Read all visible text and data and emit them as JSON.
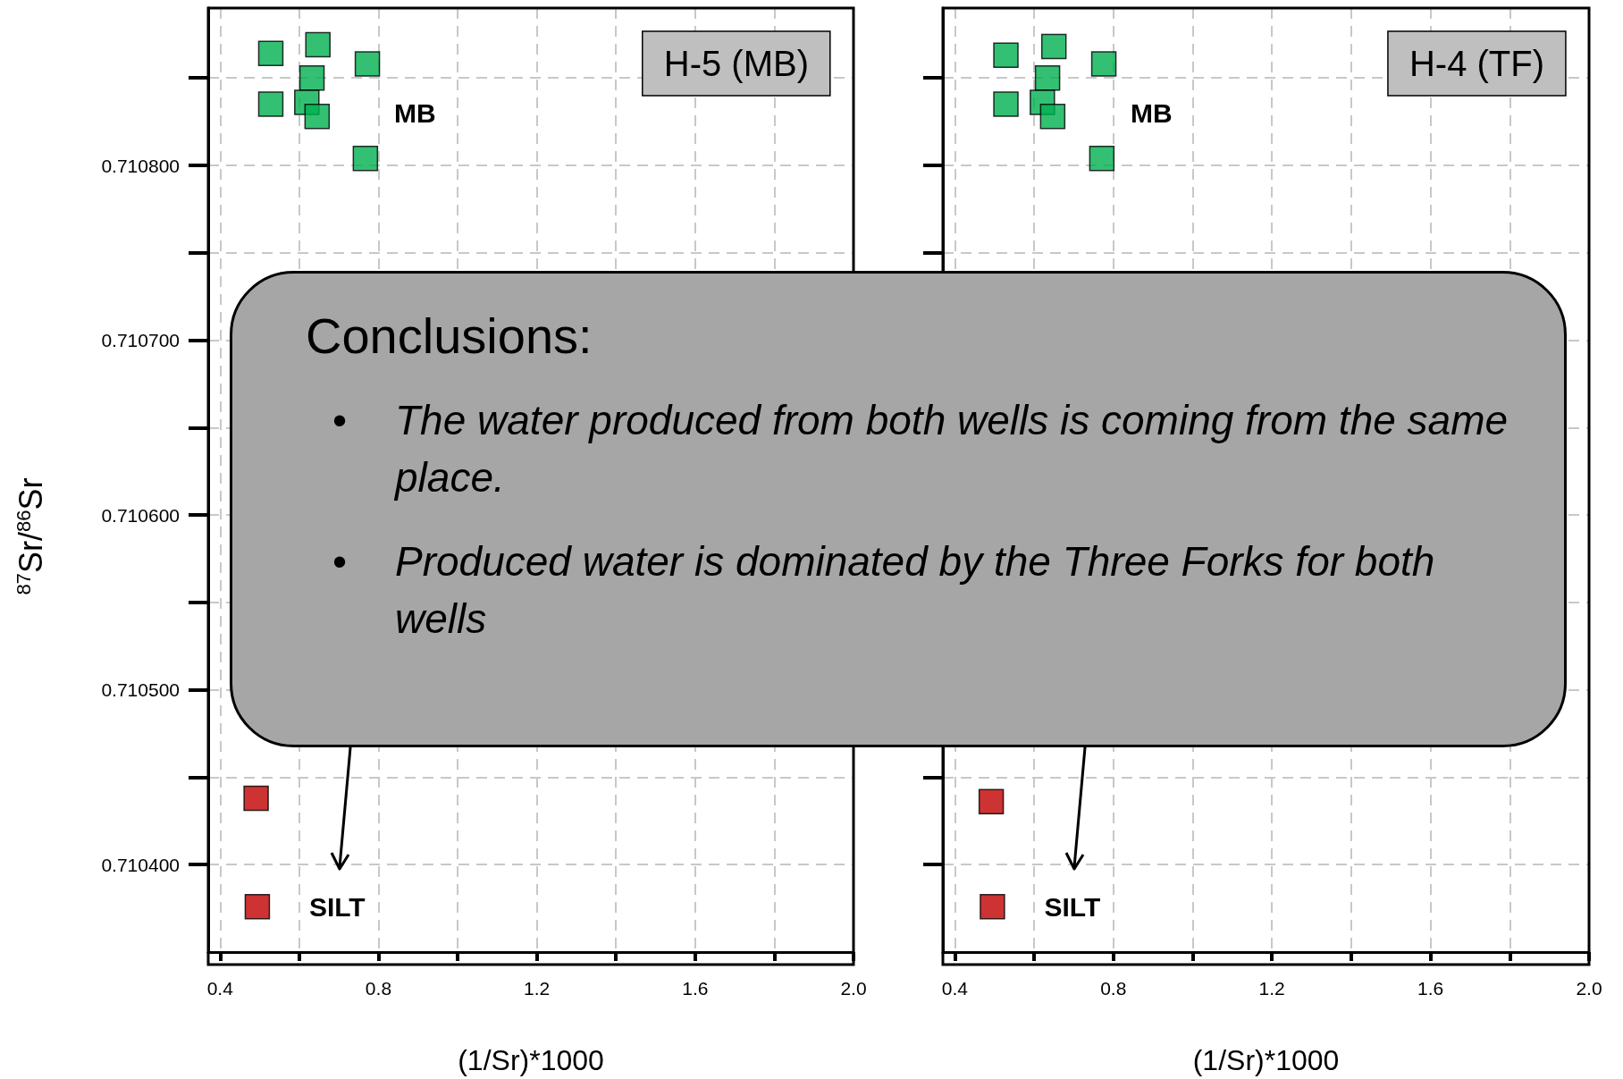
{
  "chart_data": [
    {
      "type": "scatter",
      "title": "H-5 (MB)",
      "xlabel": "(1/Sr)*1000",
      "ylabel": "$^{87}$Sr/$^{86}$Sr",
      "marker": "square",
      "grid": true,
      "xlim": [
        0.37,
        2.0
      ],
      "xticks": [
        0.4,
        {
          "value": 0.6,
          "label": null
        },
        0.8,
        {
          "value": 1.0,
          "label": null
        },
        1.2,
        {
          "value": 1.4,
          "label": null
        },
        1.6,
        {
          "value": 1.8,
          "label": null
        },
        {
          "value": 2.0,
          "label": "2.0"
        }
      ],
      "ylim": [
        0.71035,
        0.71089
      ],
      "yticks": [
        {
          "value": 0.7104,
          "label": "0.710400"
        },
        {
          "value": 0.71045,
          "label": null
        },
        {
          "value": 0.7105,
          "label": "0.710500"
        },
        {
          "value": 0.71055,
          "label": null
        },
        {
          "value": 0.7106,
          "label": "0.710600"
        },
        {
          "value": 0.71065,
          "label": null
        },
        {
          "value": 0.7107,
          "label": "0.710700"
        },
        {
          "value": 0.71075,
          "label": null
        },
        {
          "value": 0.7108,
          "label": "0.710800"
        },
        {
          "value": 0.71085,
          "label": null
        }
      ],
      "series": [
        {
          "color": "#00b050",
          "x": [
            0.528,
            0.647,
            0.772,
            0.632,
            0.528,
            0.619,
            0.645,
            0.767
          ],
          "values": [
            0.710864,
            0.710869,
            0.710858,
            0.71085,
            0.710835,
            0.710836,
            0.710828,
            0.710804
          ]
        },
        {
          "color": "#c00000",
          "x": [
            0.491,
            0.494
          ],
          "values": [
            0.710438,
            0.710376
          ]
        }
      ],
      "annotations": [
        "MB",
        "SILT"
      ]
    },
    {
      "type": "scatter",
      "title": "H-4 (TF)",
      "xlabel": "(1/Sr)*1000",
      "marker": "square",
      "grid": true,
      "tick_labels": "x",
      "xlim": [
        0.37,
        2.0
      ],
      "xticks": [
        0.4,
        {
          "value": 0.6,
          "label": null
        },
        0.8,
        {
          "value": 1.0,
          "label": null
        },
        1.2,
        {
          "value": 1.4,
          "label": null
        },
        1.6,
        {
          "value": 1.8,
          "label": null
        },
        {
          "value": 2.0,
          "label": "2.0"
        }
      ],
      "ylim": [
        0.71035,
        0.71089
      ],
      "yticks": [
        {
          "value": 0.7104,
          "label": null
        },
        {
          "value": 0.71045,
          "label": null
        },
        {
          "value": 0.7105,
          "label": null
        },
        {
          "value": 0.71055,
          "label": null
        },
        {
          "value": 0.7106,
          "label": null
        },
        {
          "value": 0.71065,
          "label": null
        },
        {
          "value": 0.7107,
          "label": null
        },
        {
          "value": 0.71075,
          "label": null
        },
        {
          "value": 0.7108,
          "label": null
        },
        {
          "value": 0.71085,
          "label": null
        }
      ],
      "series": [
        {
          "color": "#00b050",
          "x": [
            0.529,
            0.65,
            0.776,
            0.634,
            0.529,
            0.621,
            0.647,
            0.771
          ],
          "values": [
            0.710863,
            0.710868,
            0.710858,
            0.71085,
            0.710835,
            0.710836,
            0.710828,
            0.710804
          ]
        },
        {
          "color": "#c00000",
          "x": [
            0.492,
            0.495
          ],
          "values": [
            0.710436,
            0.710376
          ]
        }
      ],
      "annotations": [
        "MB",
        "SILT"
      ]
    },
    {
      "type": "other",
      "title": "Conclusions:",
      "annotations": [
        "• The water produced from both wells is coming from the same place.",
        "• Produced water is dominated by the Three Forks for both wells"
      ]
    }
  ]
}
